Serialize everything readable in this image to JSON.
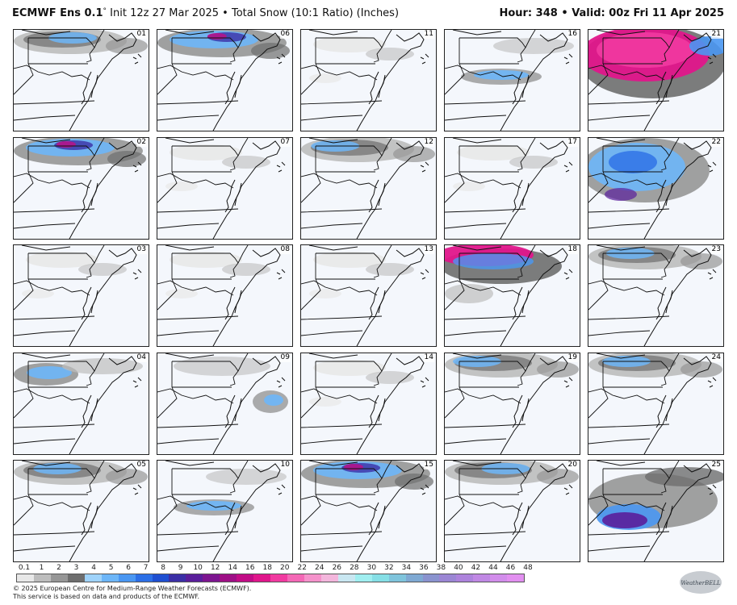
{
  "header": {
    "model": "ECMWF Ens 0.1",
    "degree": "°",
    "init": "Init 12z 27 Mar 2025",
    "separator": "•",
    "product": "Total Snow (10:1 Ratio) (Inches)",
    "hour_label": "Hour:",
    "hour_value": "348",
    "valid_label": "Valid:",
    "valid_value": "00z Fri 11 Apr 2025"
  },
  "map": {
    "region": "Mid-Atlantic / Northeast US",
    "columns": 5,
    "rows": 5,
    "panels": [
      {
        "id": "01",
        "snow": "light-north"
      },
      {
        "id": "06",
        "snow": "moderate-north"
      },
      {
        "id": "11",
        "snow": "trace"
      },
      {
        "id": "16",
        "snow": "light-band"
      },
      {
        "id": "21",
        "snow": "heavy"
      },
      {
        "id": "02",
        "snow": "moderate-north"
      },
      {
        "id": "07",
        "snow": "trace"
      },
      {
        "id": "12",
        "snow": "light-north"
      },
      {
        "id": "17",
        "snow": "trace"
      },
      {
        "id": "22",
        "snow": "moderate-wide"
      },
      {
        "id": "03",
        "snow": "trace"
      },
      {
        "id": "08",
        "snow": "trace"
      },
      {
        "id": "13",
        "snow": "trace"
      },
      {
        "id": "18",
        "snow": "heavy-north"
      },
      {
        "id": "23",
        "snow": "light-north"
      },
      {
        "id": "04",
        "snow": "light-west"
      },
      {
        "id": "09",
        "snow": "light-offshore"
      },
      {
        "id": "14",
        "snow": "trace"
      },
      {
        "id": "19",
        "snow": "light-north"
      },
      {
        "id": "24",
        "snow": "light-north"
      },
      {
        "id": "05",
        "snow": "light-north"
      },
      {
        "id": "10",
        "snow": "light-band"
      },
      {
        "id": "15",
        "snow": "moderate-north"
      },
      {
        "id": "20",
        "snow": "light-north"
      },
      {
        "id": "25",
        "snow": "heavy-band"
      }
    ]
  },
  "legend": {
    "labels": [
      "0.1",
      "1",
      "2",
      "3",
      "4",
      "5",
      "6",
      "7",
      "8",
      "9",
      "10",
      "12",
      "14",
      "16",
      "18",
      "20",
      "22",
      "24",
      "26",
      "28",
      "30",
      "32",
      "34",
      "36",
      "38",
      "40",
      "42",
      "44",
      "46",
      "48"
    ],
    "colors": [
      "#e8e8e8",
      "#bdbdbd",
      "#969696",
      "#6e6e6e",
      "#9fd3fb",
      "#6db6f8",
      "#4a97f2",
      "#2c6fe6",
      "#1f4fd1",
      "#3b2fa6",
      "#5a1e9b",
      "#7d1590",
      "#9e0f86",
      "#c10c86",
      "#e0168b",
      "#f13aa0",
      "#f468b6",
      "#f592cb",
      "#f3b6dc",
      "#c9e7f1",
      "#a0eef0",
      "#86dfe6",
      "#7fc4dc",
      "#7fa9d3",
      "#8a93cf",
      "#9b86d4",
      "#ad83dc",
      "#c088e4",
      "#d28deb",
      "#e28ff0"
    ]
  },
  "credits": {
    "line1": "© 2025 European Centre for Medium-Range Weather Forecasts (ECMWF).",
    "line2": "This service is based on data and products of the ECMWF."
  },
  "logo": {
    "text": "WeatherBELL",
    "icon": "weatherbell-logo"
  }
}
